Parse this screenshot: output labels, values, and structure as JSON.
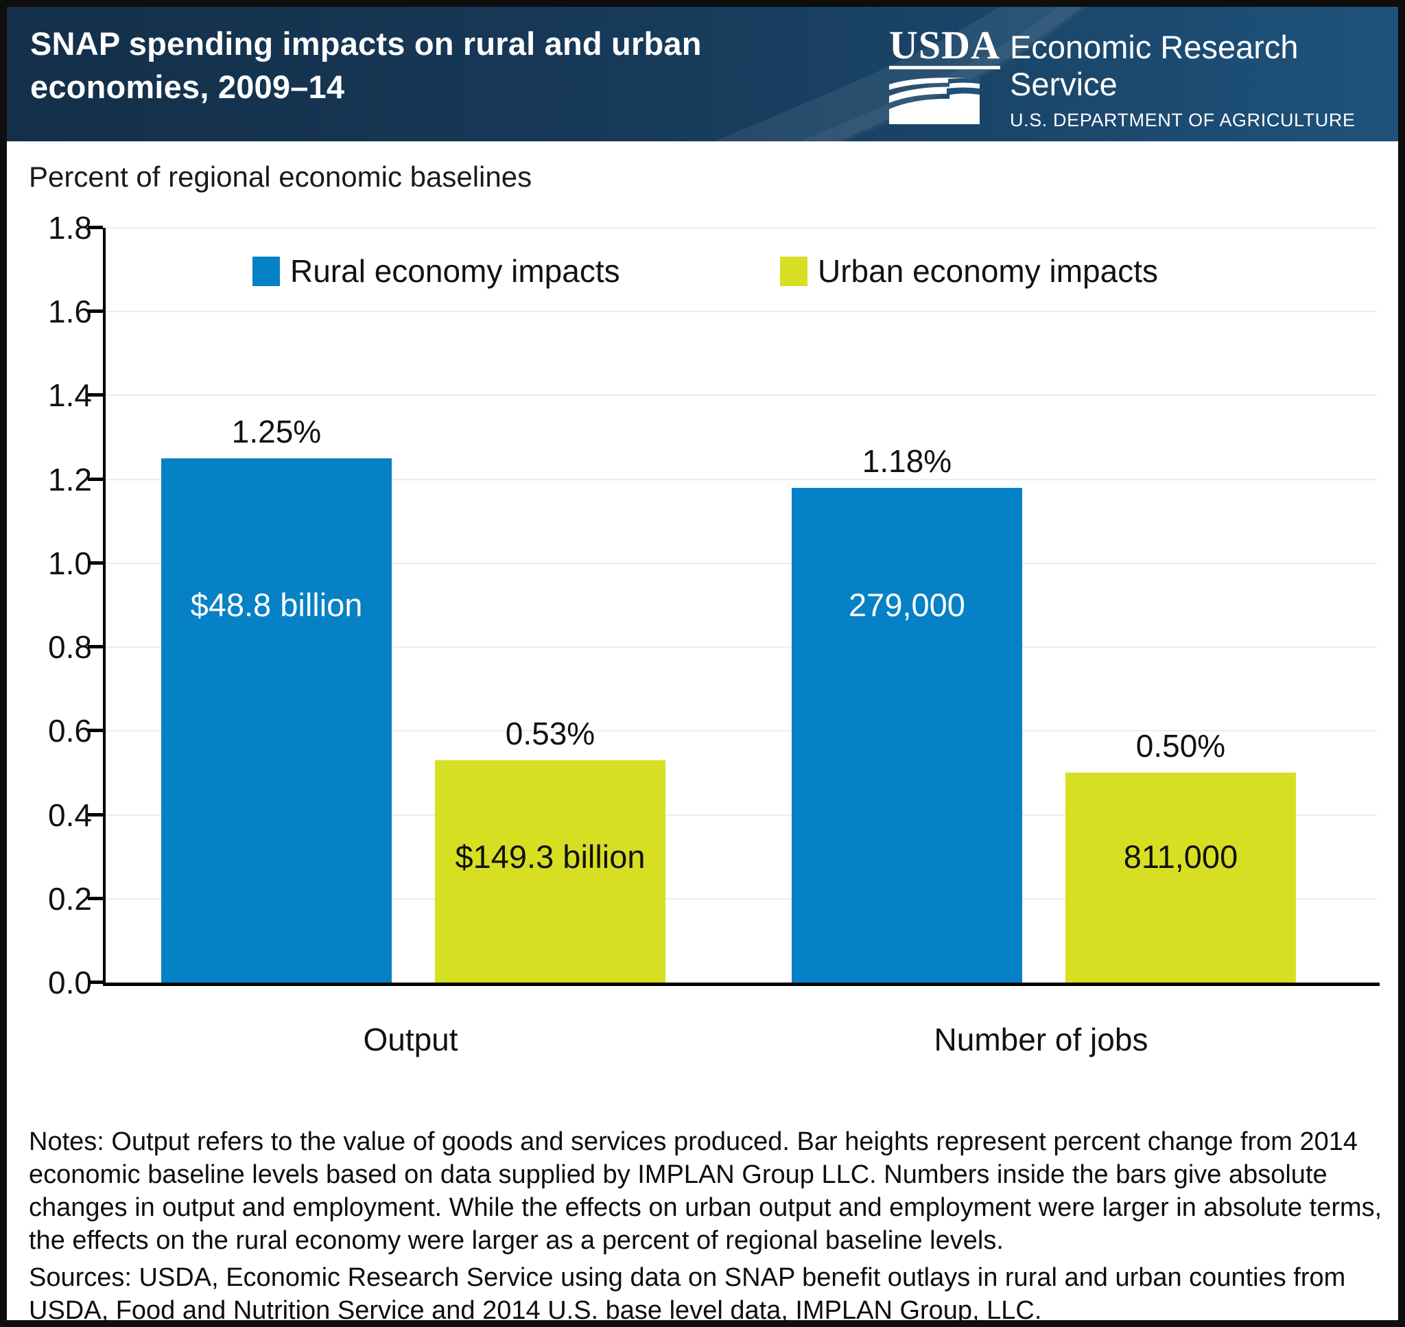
{
  "header": {
    "title_line1": "SNAP spending impacts on rural and urban",
    "title_line2": "economies, 2009–14",
    "logo": {
      "acronym": "USDA",
      "agency": "Economic Research Service",
      "department": "U.S. DEPARTMENT OF AGRICULTURE"
    }
  },
  "chart_data": {
    "type": "bar",
    "title": "Percent of regional economic baselines",
    "categories": [
      "Output",
      "Number of jobs"
    ],
    "series": [
      {
        "name": "Rural economy impacts",
        "color": "#0681C6",
        "values": [
          1.25,
          1.18
        ],
        "bar_labels": [
          "1.25%",
          "1.18%"
        ],
        "inner_labels": [
          "$48.8 billion",
          "279,000"
        ],
        "inner_label_color": "#ffffff",
        "inner_label_y": 0.9
      },
      {
        "name": "Urban economy impacts",
        "color": "#D7DF23",
        "values": [
          0.53,
          0.5
        ],
        "bar_labels": [
          "0.53%",
          "0.50%"
        ],
        "inner_labels": [
          "$149.3 billion",
          "811,000"
        ],
        "inner_label_color": "#111111",
        "inner_label_y": 0.3
      }
    ],
    "ylim": [
      0.0,
      1.8
    ],
    "ytick_step": 0.2,
    "yticks": [
      "0.0",
      "0.2",
      "0.4",
      "0.6",
      "0.8",
      "1.0",
      "1.2",
      "1.4",
      "1.6",
      "1.8"
    ],
    "grid": true,
    "legend_position": "top",
    "xlabel": "",
    "ylabel": "Percent of regional economic baselines"
  },
  "notes": "Notes: Output refers to the value of goods and services produced. Bar heights represent percent change from 2014 economic baseline levels based on data supplied by IMPLAN Group LLC. Numbers inside the bars give absolute changes in output and employment. While the effects on urban output and employment were larger in absolute terms, the effects on the rural economy were larger as a percent of regional baseline levels.",
  "sources": "Sources: USDA, Economic Research Service using data on SNAP benefit outlays in rural and urban counties from USDA, Food and Nutrition Service and 2014 U.S. base level data, IMPLAN Group, LLC."
}
